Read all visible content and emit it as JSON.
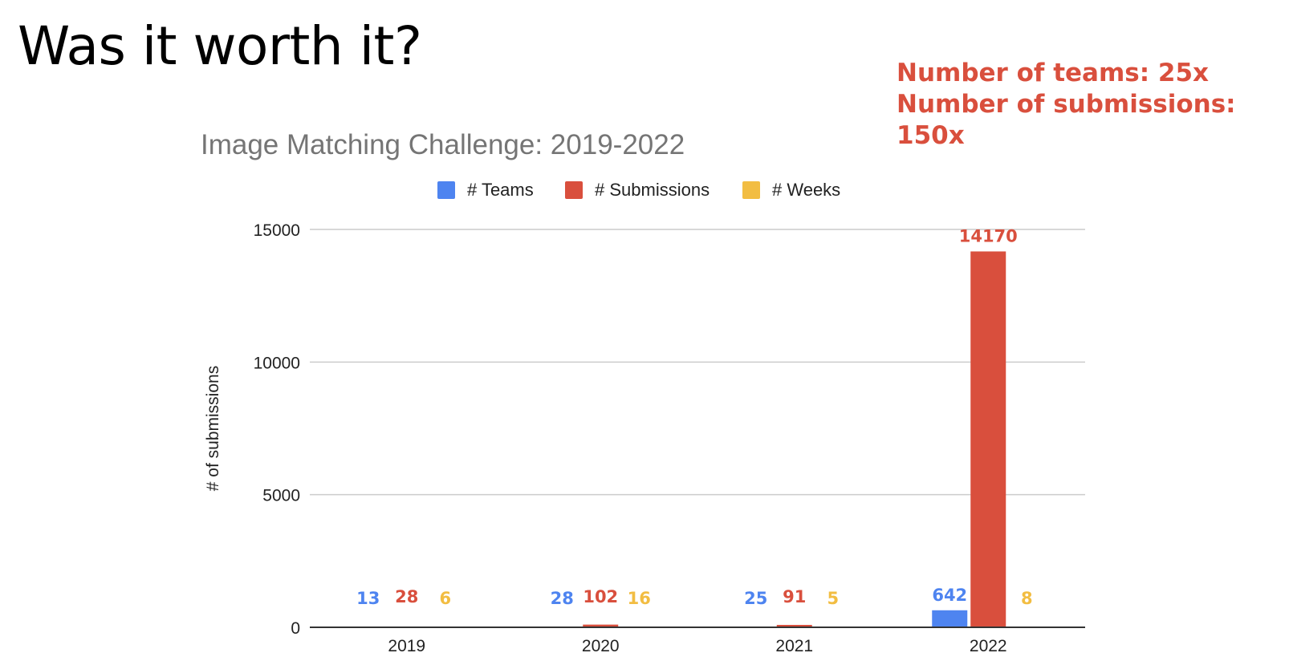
{
  "slide": {
    "title": "Was it worth it?",
    "callout_lines": [
      "Number of teams: 25x",
      "Number of submissions:",
      "150x"
    ]
  },
  "colors": {
    "teams": "#4e84f0",
    "submissions": "#d94f3d",
    "weeks": "#f2bd42",
    "callout": "#d94f3d"
  },
  "chart_data": {
    "type": "bar",
    "title": "Image Matching Challenge: 2019-2022",
    "xlabel": "",
    "ylabel": "# of submissions",
    "categories": [
      "2019",
      "2020",
      "2021",
      "2022"
    ],
    "series": [
      {
        "name": "# Teams",
        "color": "#4e84f0",
        "values": [
          13,
          28,
          25,
          642
        ]
      },
      {
        "name": "# Submissions",
        "color": "#d94f3d",
        "values": [
          28,
          102,
          91,
          14170
        ]
      },
      {
        "name": "# Weeks",
        "color": "#f2bd42",
        "values": [
          6,
          16,
          5,
          8
        ]
      }
    ],
    "ylim": [
      0,
      15000
    ],
    "yticks": [
      0,
      5000,
      10000,
      15000
    ],
    "grid": true,
    "legend": "top",
    "data_labels": true
  }
}
